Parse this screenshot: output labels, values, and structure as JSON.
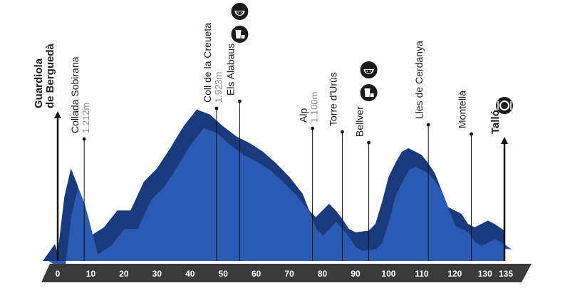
{
  "chart_data": {
    "type": "area",
    "title": "",
    "xlabel": "",
    "ylabel": "",
    "xlim": [
      0,
      135
    ],
    "x_ticks": [
      "0",
      "10",
      "20",
      "30",
      "40",
      "50",
      "60",
      "70",
      "80",
      "90",
      "100",
      "110",
      "120",
      "130",
      "135"
    ],
    "profile": [
      [
        0,
        0.05
      ],
      [
        2,
        0.38
      ],
      [
        4,
        0.55
      ],
      [
        6,
        0.45
      ],
      [
        8,
        0.3
      ],
      [
        10,
        0.15
      ],
      [
        14,
        0.2
      ],
      [
        18,
        0.3
      ],
      [
        22,
        0.3
      ],
      [
        26,
        0.47
      ],
      [
        30,
        0.55
      ],
      [
        34,
        0.67
      ],
      [
        38,
        0.8
      ],
      [
        42,
        0.9
      ],
      [
        46,
        0.87
      ],
      [
        50,
        0.8
      ],
      [
        54,
        0.74
      ],
      [
        58,
        0.7
      ],
      [
        62,
        0.65
      ],
      [
        66,
        0.58
      ],
      [
        70,
        0.5
      ],
      [
        74,
        0.4
      ],
      [
        76,
        0.3
      ],
      [
        78,
        0.26
      ],
      [
        80,
        0.3
      ],
      [
        82,
        0.34
      ],
      [
        84,
        0.3
      ],
      [
        86,
        0.25
      ],
      [
        88,
        0.19
      ],
      [
        90,
        0.17
      ],
      [
        94,
        0.18
      ],
      [
        96,
        0.22
      ],
      [
        98,
        0.35
      ],
      [
        100,
        0.5
      ],
      [
        102,
        0.58
      ],
      [
        104,
        0.65
      ],
      [
        106,
        0.67
      ],
      [
        108,
        0.65
      ],
      [
        110,
        0.63
      ],
      [
        112,
        0.58
      ],
      [
        114,
        0.52
      ],
      [
        116,
        0.42
      ],
      [
        118,
        0.32
      ],
      [
        120,
        0.3
      ],
      [
        122,
        0.28
      ],
      [
        124,
        0.22
      ],
      [
        126,
        0.2
      ],
      [
        128,
        0.22
      ],
      [
        130,
        0.24
      ],
      [
        132,
        0.22
      ],
      [
        135,
        0.18
      ]
    ],
    "places": [
      {
        "km": 0,
        "name": "Guardiola de Berguedà",
        "altitude": "",
        "bold": true,
        "arrow": true
      },
      {
        "km": 8,
        "name": "Collada Sobirana",
        "altitude": "1.212m",
        "bold": false
      },
      {
        "km": 48,
        "name": "Coll de la Creueta",
        "altitude": "1.923m",
        "bold": false
      },
      {
        "km": 55,
        "name": "Els Alabaus",
        "altitude": "",
        "bold": false,
        "icons": [
          "watermelon-icon",
          "drink-icon"
        ]
      },
      {
        "km": 77,
        "name": "Alp",
        "altitude": "1.100m",
        "bold": false
      },
      {
        "km": 86,
        "name": "Torre d'Urús",
        "altitude": "",
        "bold": false
      },
      {
        "km": 94,
        "name": "Bellver",
        "altitude": "",
        "bold": false,
        "icons": [
          "watermelon-icon",
          "drink-icon"
        ]
      },
      {
        "km": 112,
        "name": "Lles de Cerdanya",
        "altitude": "",
        "bold": false
      },
      {
        "km": 125,
        "name": "Montellà",
        "altitude": "",
        "bold": false
      },
      {
        "km": 135,
        "name": "Talló",
        "altitude": "",
        "bold": true,
        "arrow": true,
        "icons": [
          "meal-icon"
        ]
      }
    ],
    "colors": {
      "light_fill": "#2a5ab2",
      "dark_fill": "#1a3a7c",
      "axis_band": "#3a3a3a"
    }
  }
}
